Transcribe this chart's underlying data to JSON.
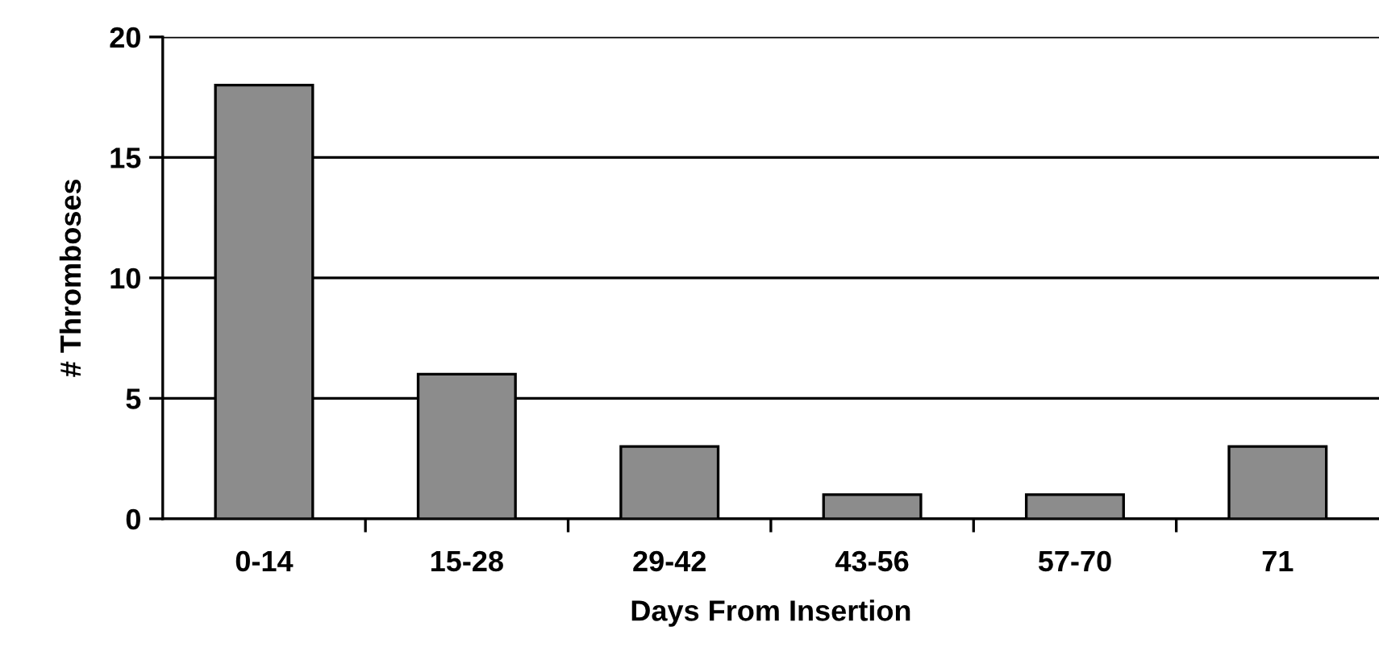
{
  "chart_data": {
    "type": "bar",
    "xlabel": "Days From Insertion",
    "ylabel": "# Thromboses",
    "categories": [
      "0-14",
      "15-28",
      "29-42",
      "43-56",
      "57-70",
      "71"
    ],
    "values": [
      18,
      6,
      3,
      1,
      1,
      3
    ],
    "color": "#8c8c8c",
    "ylim": [
      0,
      20
    ],
    "yticks": [
      0,
      5,
      10,
      15,
      20
    ],
    "grid": "y"
  }
}
